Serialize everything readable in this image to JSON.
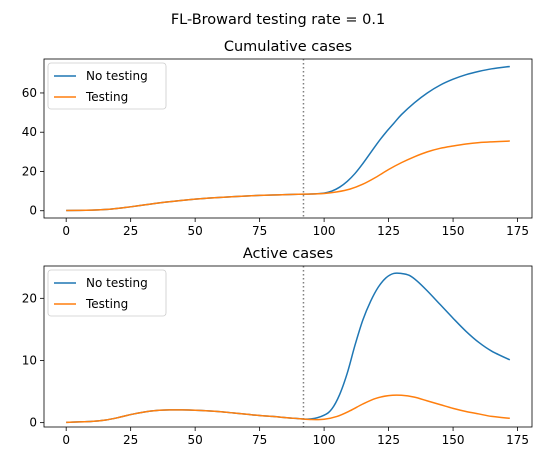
{
  "figure": {
    "suptitle": "FL-Broward testing rate = 0.1"
  },
  "chart_data": [
    {
      "type": "line",
      "title": "Cumulative cases",
      "xlabel": "",
      "ylabel": "",
      "xlim": [
        -8.6,
        180.6
      ],
      "ylim": [
        -3.7,
        77.3
      ],
      "xticks": [
        0,
        25,
        50,
        75,
        100,
        125,
        150,
        175
      ],
      "yticks": [
        0,
        20,
        40,
        60
      ],
      "grid": false,
      "legend": "top-left",
      "vline": {
        "x": 92,
        "style": "dotted",
        "color": "#7f7f7f"
      },
      "series": [
        {
          "name": "No testing",
          "color": "#1f77b4",
          "x": [
            0,
            10,
            15,
            20,
            25,
            30,
            35,
            40,
            45,
            50,
            55,
            60,
            65,
            70,
            75,
            80,
            85,
            90,
            95,
            100,
            103,
            106,
            109,
            112,
            115,
            118,
            121,
            124,
            127,
            130,
            135,
            140,
            145,
            150,
            155,
            160,
            165,
            172
          ],
          "values": [
            0.1,
            0.3,
            0.6,
            1.2,
            2.0,
            2.9,
            3.8,
            4.6,
            5.3,
            5.9,
            6.4,
            6.8,
            7.2,
            7.5,
            7.8,
            8.0,
            8.2,
            8.4,
            8.5,
            9.0,
            10.0,
            12.0,
            15.0,
            19.0,
            24.0,
            29.5,
            35.0,
            40.0,
            44.5,
            49.0,
            55.0,
            60.0,
            64.0,
            67.0,
            69.3,
            71.0,
            72.3,
            73.5
          ]
        },
        {
          "name": "Testing",
          "color": "#ff7f0e",
          "x": [
            0,
            10,
            15,
            20,
            25,
            30,
            35,
            40,
            45,
            50,
            55,
            60,
            65,
            70,
            75,
            80,
            85,
            90,
            95,
            100,
            105,
            110,
            115,
            120,
            125,
            130,
            135,
            140,
            145,
            150,
            155,
            160,
            165,
            172
          ],
          "values": [
            0.1,
            0.3,
            0.6,
            1.2,
            2.0,
            2.9,
            3.8,
            4.6,
            5.3,
            5.9,
            6.4,
            6.8,
            7.2,
            7.5,
            7.8,
            8.0,
            8.2,
            8.4,
            8.5,
            8.8,
            9.6,
            11.0,
            13.5,
            17.0,
            21.0,
            24.5,
            27.5,
            30.0,
            31.8,
            33.0,
            34.0,
            34.7,
            35.1,
            35.5
          ]
        }
      ]
    },
    {
      "type": "line",
      "title": "Active cases",
      "xlabel": "",
      "ylabel": "",
      "xlim": [
        -8.6,
        180.6
      ],
      "ylim": [
        -0.7,
        25.2
      ],
      "xticks": [
        0,
        25,
        50,
        75,
        100,
        125,
        150,
        175
      ],
      "yticks": [
        0,
        10,
        20
      ],
      "grid": false,
      "legend": "top-left",
      "vline": {
        "x": 92,
        "style": "dotted",
        "color": "#7f7f7f"
      },
      "series": [
        {
          "name": "No testing",
          "color": "#1f77b4",
          "x": [
            0,
            10,
            15,
            20,
            25,
            30,
            35,
            40,
            45,
            50,
            55,
            60,
            65,
            70,
            75,
            80,
            85,
            90,
            95,
            100,
            103,
            106,
            109,
            112,
            115,
            118,
            121,
            124,
            127,
            130,
            133,
            136,
            140,
            145,
            150,
            155,
            160,
            165,
            172
          ],
          "values": [
            0.05,
            0.2,
            0.4,
            0.8,
            1.3,
            1.7,
            1.95,
            2.05,
            2.05,
            2.0,
            1.9,
            1.75,
            1.55,
            1.35,
            1.15,
            1.0,
            0.8,
            0.65,
            0.6,
            1.2,
            2.2,
            4.5,
            8.0,
            12.5,
            16.5,
            19.5,
            21.8,
            23.3,
            24.0,
            24.0,
            23.7,
            22.8,
            21.2,
            19.0,
            16.8,
            14.7,
            12.9,
            11.5,
            10.1
          ]
        },
        {
          "name": "Testing",
          "color": "#ff7f0e",
          "x": [
            0,
            10,
            15,
            20,
            25,
            30,
            35,
            40,
            45,
            50,
            55,
            60,
            65,
            70,
            75,
            80,
            85,
            90,
            95,
            100,
            105,
            110,
            115,
            120,
            125,
            130,
            135,
            140,
            145,
            150,
            155,
            160,
            165,
            172
          ],
          "values": [
            0.05,
            0.2,
            0.4,
            0.8,
            1.3,
            1.7,
            1.95,
            2.05,
            2.05,
            2.0,
            1.9,
            1.75,
            1.55,
            1.35,
            1.15,
            1.0,
            0.8,
            0.65,
            0.5,
            0.55,
            1.0,
            1.9,
            3.0,
            3.9,
            4.35,
            4.4,
            4.1,
            3.5,
            2.9,
            2.3,
            1.8,
            1.4,
            1.0,
            0.7
          ]
        }
      ]
    }
  ]
}
